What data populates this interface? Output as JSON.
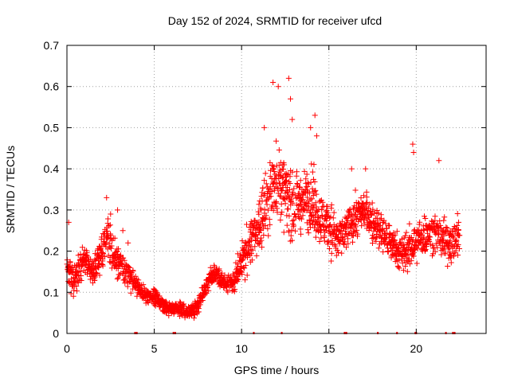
{
  "chart_data": {
    "type": "scatter",
    "title": "Day 152 of 2024, SRMTID for receiver ufcd",
    "xlabel": "GPS time / hours",
    "ylabel": "SRMTID / TECUs",
    "xlim": [
      0,
      24
    ],
    "ylim": [
      0,
      0.7
    ],
    "xticks": [
      0,
      5,
      10,
      15,
      20
    ],
    "xtick_labels": [
      "0",
      "5",
      "10",
      "15",
      "20"
    ],
    "yticks": [
      0,
      0.1,
      0.2,
      0.3,
      0.4,
      0.5,
      0.6,
      0.7
    ],
    "ytick_labels": [
      "0",
      "0.1",
      "0.2",
      "0.3",
      "0.4",
      "0.5",
      "0.6",
      "0.7"
    ],
    "grid": true,
    "marker": "+",
    "color": "#ff0000",
    "series": [
      {
        "name": "SRMTID",
        "trend": {
          "x": [
            0.0,
            0.3,
            0.6,
            1.0,
            1.5,
            2.0,
            2.3,
            2.6,
            3.0,
            3.5,
            4.0,
            4.5,
            5.0,
            5.5,
            6.0,
            6.5,
            7.0,
            7.5,
            8.0,
            8.5,
            9.0,
            9.5,
            10.0,
            10.5,
            11.0,
            11.5,
            12.0,
            12.5,
            13.0,
            13.5,
            14.0,
            14.5,
            15.0,
            15.5,
            16.0,
            16.5,
            17.0,
            17.5,
            18.0,
            18.5,
            19.0,
            19.5,
            20.0,
            20.5,
            21.0,
            21.5,
            22.0,
            22.5
          ],
          "y": [
            0.16,
            0.13,
            0.15,
            0.19,
            0.15,
            0.2,
            0.25,
            0.19,
            0.17,
            0.14,
            0.12,
            0.09,
            0.09,
            0.07,
            0.06,
            0.06,
            0.05,
            0.07,
            0.12,
            0.15,
            0.12,
            0.12,
            0.17,
            0.22,
            0.26,
            0.33,
            0.38,
            0.34,
            0.3,
            0.32,
            0.33,
            0.28,
            0.27,
            0.22,
            0.25,
            0.28,
            0.3,
            0.27,
            0.25,
            0.22,
            0.2,
            0.2,
            0.22,
            0.24,
            0.25,
            0.23,
            0.22,
            0.24
          ],
          "spread": [
            0.04,
            0.05,
            0.05,
            0.05,
            0.05,
            0.06,
            0.06,
            0.06,
            0.05,
            0.04,
            0.03,
            0.025,
            0.025,
            0.02,
            0.02,
            0.02,
            0.02,
            0.025,
            0.03,
            0.03,
            0.03,
            0.035,
            0.06,
            0.07,
            0.09,
            0.1,
            0.11,
            0.1,
            0.09,
            0.09,
            0.09,
            0.08,
            0.08,
            0.06,
            0.06,
            0.06,
            0.06,
            0.06,
            0.06,
            0.06,
            0.06,
            0.06,
            0.06,
            0.06,
            0.06,
            0.06,
            0.06,
            0.06
          ]
        },
        "points": [
          {
            "x": 2.27,
            "y": 0.33
          },
          {
            "x": 11.8,
            "y": 0.61
          },
          {
            "x": 12.1,
            "y": 0.6
          },
          {
            "x": 12.7,
            "y": 0.62
          },
          {
            "x": 12.8,
            "y": 0.57
          },
          {
            "x": 13.95,
            "y": 0.5
          },
          {
            "x": 14.2,
            "y": 0.53
          },
          {
            "x": 14.3,
            "y": 0.48
          },
          {
            "x": 19.8,
            "y": 0.46
          },
          {
            "x": 19.85,
            "y": 0.44
          },
          {
            "x": 21.3,
            "y": 0.42
          },
          {
            "x": 12.9,
            "y": 0.52
          },
          {
            "x": 11.3,
            "y": 0.5
          },
          {
            "x": 17.1,
            "y": 0.4
          },
          {
            "x": 2.5,
            "y": 0.29
          },
          {
            "x": 3.5,
            "y": 0.22
          },
          {
            "x": 3.2,
            "y": 0.25
          },
          {
            "x": 0.1,
            "y": 0.27
          },
          {
            "x": 2.9,
            "y": 0.3
          },
          {
            "x": 16.3,
            "y": 0.4
          }
        ]
      }
    ],
    "rug_marks_x": [
      3.9,
      4.0,
      6.1,
      6.2,
      10.7,
      12.3,
      15.9,
      16.0,
      17.8,
      18.9,
      19.95,
      20.0,
      21.7,
      22.1,
      22.2
    ]
  }
}
